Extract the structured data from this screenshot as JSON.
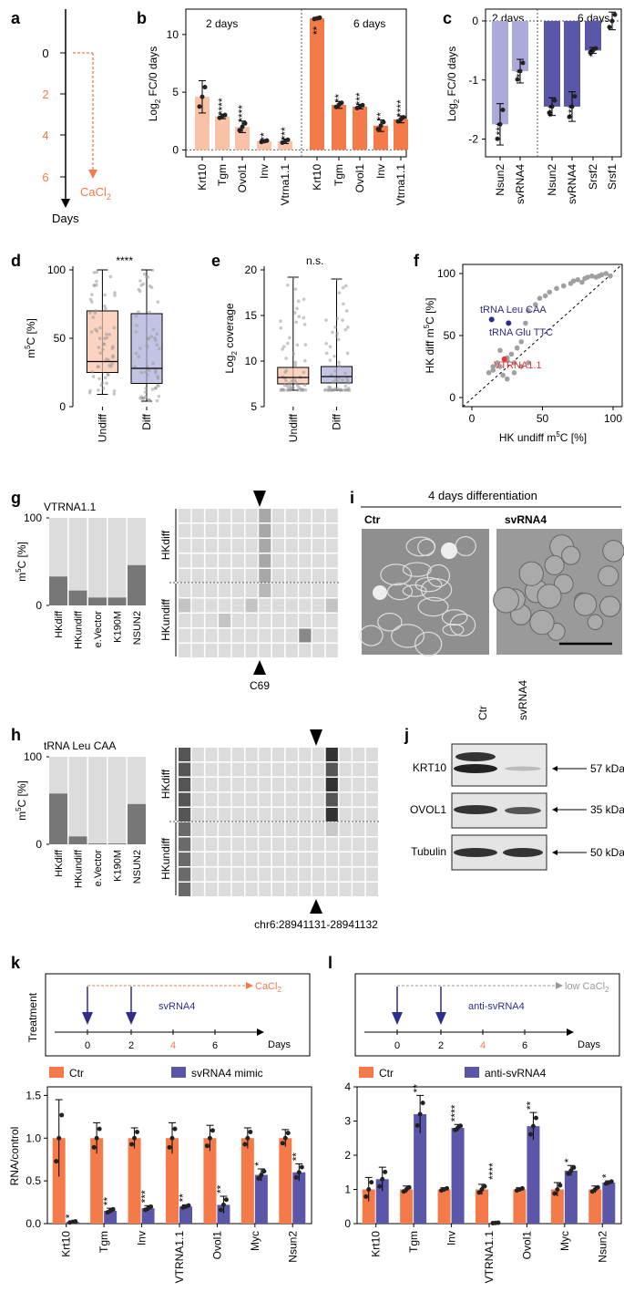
{
  "colors": {
    "orange": "#f47a4a",
    "light_orange": "#f9c1a6",
    "blue": "#5a57a9",
    "light_blue": "#aaa9d8",
    "red": "#e8333a",
    "navy": "#2d2c8a",
    "grey": "#999999",
    "light_grey": "#dcdcdc",
    "dark_grey": "#777777"
  },
  "panels": {
    "a": "a",
    "b": "b",
    "c": "c",
    "d": "d",
    "e": "e",
    "f": "f",
    "g": "g",
    "h": "h",
    "i": "i",
    "j": "j",
    "k": "k",
    "l": "l"
  },
  "a": {
    "ticks": [
      "0",
      "2",
      "4",
      "6"
    ],
    "treatment": "CaCl",
    "treatment_sub": "2",
    "axis_label": "Days"
  },
  "b": {
    "chart_data": {
      "type": "bar",
      "groups": [
        "2 days",
        "6 days"
      ],
      "categories": [
        "Krt10",
        "Tgm",
        "Ovol1",
        "Inv",
        "Vtrna1.1",
        "Krt10",
        "Tgm",
        "Ovol1",
        "Inv",
        "Vtrna1.1"
      ],
      "values": [
        4.6,
        2.9,
        2.0,
        0.75,
        0.75,
        11.4,
        3.9,
        3.75,
        2.1,
        2.65
      ],
      "errors": [
        1.4,
        0.2,
        0.5,
        0.1,
        0.2,
        0.1,
        0.3,
        0.2,
        0.5,
        0.3
      ],
      "stars": [
        "",
        "****",
        "****",
        "**",
        "***",
        "**",
        "**",
        "***",
        "**",
        "****"
      ],
      "ylabel": "Log",
      "ylabel_sub": "2",
      "ylabel_rest": " FC/0 days",
      "yticks": [
        "0",
        "5",
        "10"
      ],
      "ylim": [
        -0.6,
        12.2
      ]
    }
  },
  "c": {
    "chart_data": {
      "type": "bar",
      "groups": [
        "2 days",
        "6 days"
      ],
      "categories": [
        "Nsun2",
        "svRNA4",
        "Nsun2",
        "svRNA4",
        "Srsf2",
        "Srsf1"
      ],
      "values": [
        -1.75,
        -0.85,
        -1.45,
        -1.45,
        -0.5,
        0.0
      ],
      "errors": [
        0.35,
        0.2,
        0.15,
        0.25,
        0.05,
        0.15
      ],
      "stars": [
        "***",
        "**",
        "***",
        "***",
        "**",
        ""
      ],
      "ylabel": "Log",
      "ylabel_sub": "2",
      "ylabel_rest": " FC/0 days",
      "yticks": [
        "0",
        "-1",
        "-2"
      ],
      "ylim": [
        -2.3,
        0.2
      ]
    }
  },
  "d": {
    "chart_data": {
      "type": "box",
      "categories": [
        "Undiff",
        "Diff"
      ],
      "median": [
        33,
        28
      ],
      "q1": [
        25,
        17
      ],
      "q3": [
        70,
        68
      ],
      "whisker_low": [
        9,
        4
      ],
      "whisker_high": [
        100,
        100
      ],
      "ylabel": "m",
      "ylabel_sup": "5",
      "ylabel_rest": "C [%]",
      "yticks": [
        "0",
        "50",
        "100"
      ],
      "ylim": [
        0,
        100
      ],
      "significance": "****"
    }
  },
  "e": {
    "chart_data": {
      "type": "box",
      "categories": [
        "Undiff",
        "Diff"
      ],
      "median": [
        8.2,
        8.3
      ],
      "q1": [
        7.5,
        7.6
      ],
      "q3": [
        9.3,
        9.4
      ],
      "whisker_low": [
        6.8,
        6.8
      ],
      "whisker_high": [
        19.2,
        19.0
      ],
      "ylabel": "Log",
      "ylabel_sub": "2",
      "ylabel_rest": " coverage",
      "yticks": [
        "5",
        "10",
        "15",
        "20"
      ],
      "ylim": [
        5,
        20
      ],
      "significance": "n.s."
    }
  },
  "f": {
    "chart_data": {
      "type": "scatter",
      "x": [
        12,
        15,
        18,
        20,
        22,
        25,
        25,
        28,
        30,
        32,
        35,
        38,
        40,
        45,
        48,
        52,
        55,
        60,
        65,
        70,
        72,
        75,
        78,
        80,
        82,
        85,
        88,
        90,
        92,
        95,
        98,
        20,
        25,
        30,
        35,
        15,
        40
      ],
      "y": [
        20,
        22,
        28,
        25,
        18,
        30,
        15,
        35,
        28,
        40,
        45,
        60,
        70,
        75,
        80,
        82,
        85,
        88,
        90,
        92,
        94,
        95,
        93,
        96,
        97,
        98,
        97,
        98,
        99,
        100,
        98,
        38,
        32,
        20,
        25,
        25,
        28
      ],
      "highlight": [
        {
          "label": "tRNA Leu CAA",
          "x": 14,
          "y": 63
        },
        {
          "label": "tRNA Glu TTC",
          "x": 26,
          "y": 60
        },
        {
          "label": "VTRNA1.1",
          "x": 23,
          "y": 31
        }
      ],
      "xlabel": "HK undiff m",
      "xlabel_sup": "5",
      "xlabel_rest": "C [%]",
      "ylabel": "HK diff m",
      "ylabel_sup": "5",
      "ylabel_rest": "C [%]",
      "ticks": [
        "0",
        "50",
        "100"
      ],
      "xlim": [
        0,
        100
      ],
      "ylim": [
        0,
        100
      ]
    }
  },
  "g": {
    "title": "VTRNA1.1",
    "chart_data": {
      "type": "bar",
      "categories": [
        "HKdiff",
        "HKundiff",
        "e.Vector",
        "K190M",
        "NSUN2"
      ],
      "values": [
        33,
        17,
        9,
        9,
        46
      ],
      "yticks": [
        "0",
        "100"
      ],
      "ylabel": "m",
      "ylabel_sup": "5",
      "ylabel_rest": "C [%]"
    },
    "group_labels": [
      "HKdiff",
      "HKundiff"
    ],
    "site": "C69"
  },
  "h": {
    "title": "tRNA Leu CAA",
    "chart_data": {
      "type": "bar",
      "categories": [
        "HKdiff",
        "HKundiff",
        "e.Vector",
        "K190M",
        "NSUN2"
      ],
      "values": [
        58,
        9,
        1,
        1,
        46
      ],
      "yticks": [
        "0",
        "100"
      ],
      "ylabel": "m",
      "ylabel_sup": "5",
      "ylabel_rest": "C [%]"
    },
    "group_labels": [
      "HKdiff",
      "HKundiff"
    ],
    "site": "chr6:28941131-28941132"
  },
  "i": {
    "title": "4 days differentiation",
    "labels": [
      "Ctr",
      "svRNA4"
    ]
  },
  "j": {
    "lanes": [
      "Ctr",
      "svRNA4"
    ],
    "proteins": [
      "KRT10",
      "OVOL1",
      "Tubulin"
    ],
    "sizes": [
      "57 kDa",
      "35 kDa",
      "50 kDa"
    ]
  },
  "k": {
    "treatment_label": "Treatment",
    "reagent": "CaCl",
    "reagent_sub": "2",
    "agent": "svRNA4",
    "ticks": [
      "0",
      "2",
      "4",
      "6"
    ],
    "axis_label": "Days",
    "legend": [
      "Ctr",
      "svRNA4 mimic"
    ],
    "chart_data": {
      "type": "bar",
      "categories": [
        "Krt10",
        "Tgm",
        "Inv",
        "VTRNA1.1",
        "Ovol1",
        "Myc",
        "Nsun2"
      ],
      "series": [
        {
          "name": "Ctr",
          "values": [
            1.0,
            1.0,
            1.0,
            1.0,
            1.0,
            1.0,
            1.0
          ],
          "errors": [
            0.45,
            0.18,
            0.12,
            0.18,
            0.15,
            0.12,
            0.1
          ]
        },
        {
          "name": "svRNA4 mimic",
          "values": [
            0.02,
            0.15,
            0.18,
            0.2,
            0.22,
            0.57,
            0.6
          ],
          "errors": [
            0.01,
            0.03,
            0.03,
            0.02,
            0.1,
            0.07,
            0.1
          ]
        }
      ],
      "stars": [
        "*",
        "**",
        "***",
        "**",
        "**",
        "*",
        "**"
      ],
      "ylabel": "RNA/control",
      "yticks": [
        "0.0",
        "0.5",
        "1.0",
        "1.5"
      ],
      "ylim": [
        0,
        1.6
      ]
    }
  },
  "l": {
    "reagent": "low CaCl",
    "reagent_sub": "2",
    "agent": "anti-svRNA4",
    "ticks": [
      "0",
      "2",
      "4",
      "6"
    ],
    "axis_label": "Days",
    "legend": [
      "Ctr",
      "anti-svRNA4"
    ],
    "chart_data": {
      "type": "bar",
      "categories": [
        "Krt10",
        "Tgm",
        "Inv",
        "VTRNA1.1",
        "Ovol1",
        "Myc",
        "Nsun2"
      ],
      "series": [
        {
          "name": "Ctr",
          "values": [
            1.0,
            1.0,
            1.0,
            1.0,
            1.0,
            1.0,
            1.0
          ],
          "errors": [
            0.35,
            0.1,
            0.05,
            0.15,
            0.05,
            0.2,
            0.1
          ]
        },
        {
          "name": "anti-svRNA4",
          "values": [
            1.3,
            3.2,
            2.8,
            0.02,
            2.85,
            1.55,
            1.2
          ],
          "errors": [
            0.35,
            0.55,
            0.1,
            0.01,
            0.4,
            0.15,
            0.05
          ]
        }
      ],
      "stars": [
        "",
        "**",
        "****",
        "****",
        "**",
        "*",
        "*"
      ],
      "yticks": [
        "0",
        "1",
        "2",
        "3",
        "4"
      ],
      "ylim": [
        0,
        4
      ]
    }
  }
}
